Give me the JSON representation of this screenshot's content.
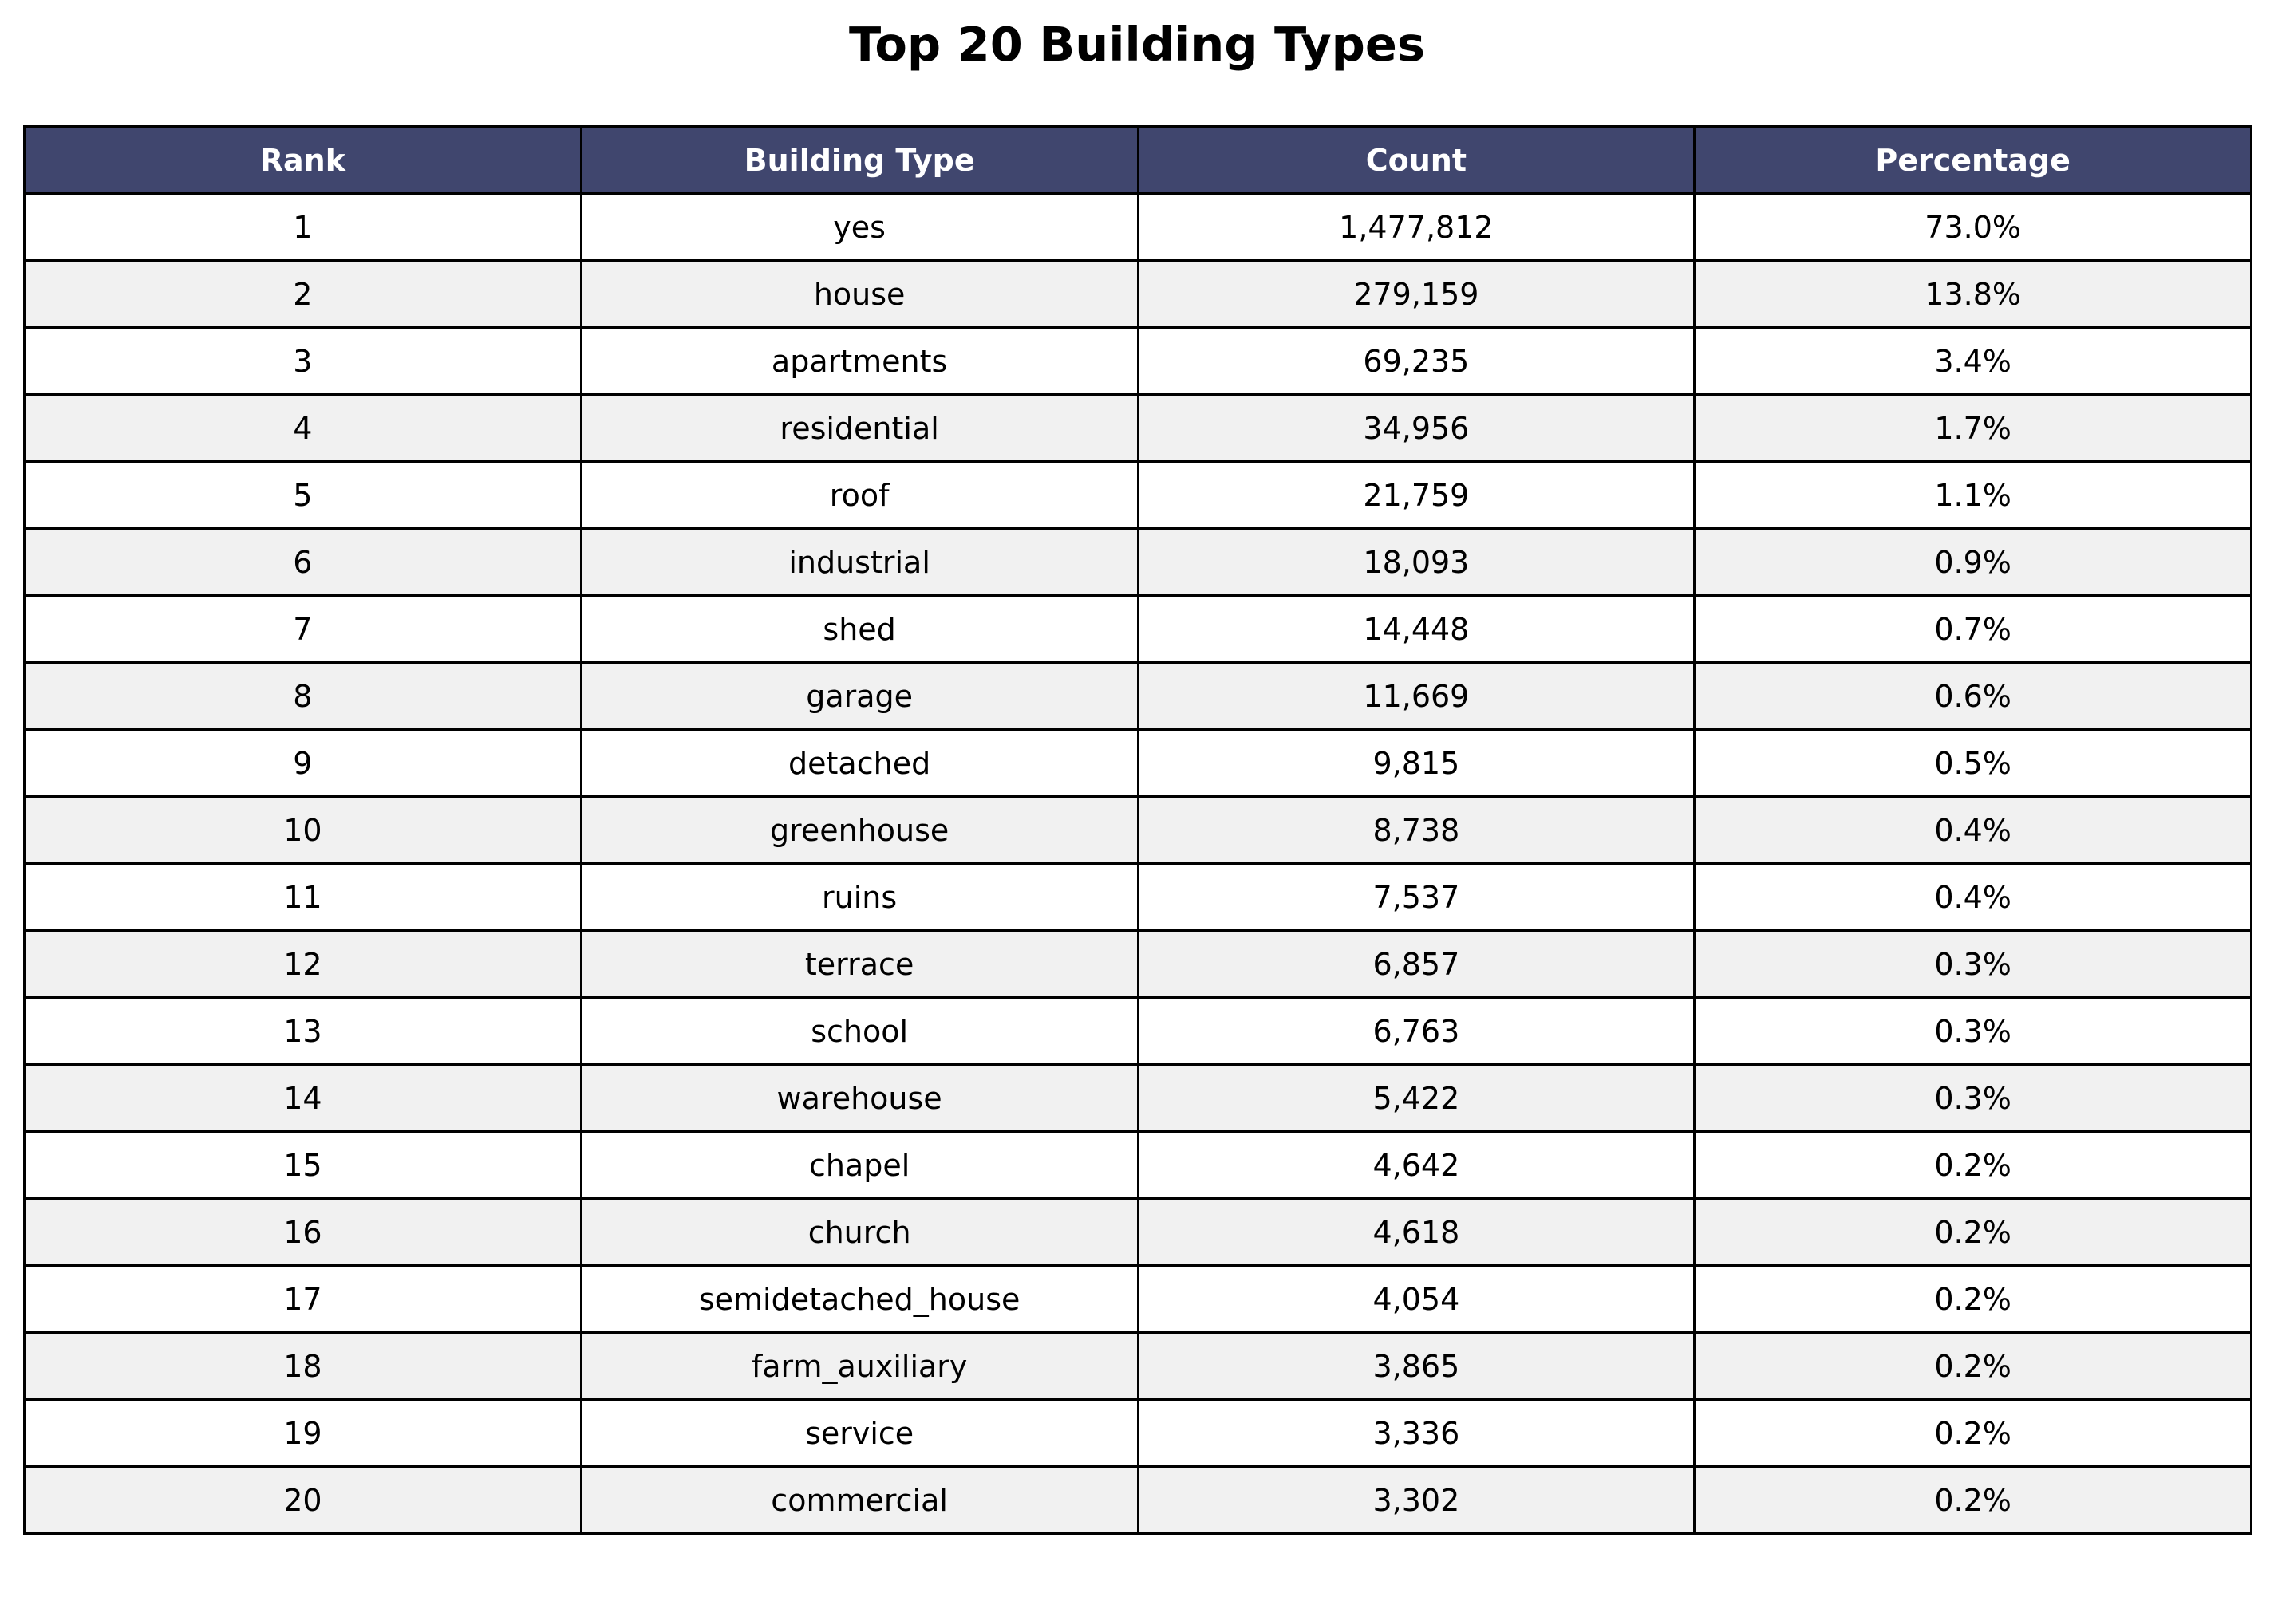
{
  "chart_data": {
    "type": "table",
    "title": "Top 20 Building Types",
    "header_color": "#40466e",
    "stripe_color": "#f1f1f1",
    "columns": [
      "Rank",
      "Building Type",
      "Count",
      "Percentage"
    ],
    "rows": [
      [
        "1",
        "yes",
        "1,477,812",
        "73.0%"
      ],
      [
        "2",
        "house",
        "279,159",
        "13.8%"
      ],
      [
        "3",
        "apartments",
        "69,235",
        "3.4%"
      ],
      [
        "4",
        "residential",
        "34,956",
        "1.7%"
      ],
      [
        "5",
        "roof",
        "21,759",
        "1.1%"
      ],
      [
        "6",
        "industrial",
        "18,093",
        "0.9%"
      ],
      [
        "7",
        "shed",
        "14,448",
        "0.7%"
      ],
      [
        "8",
        "garage",
        "11,669",
        "0.6%"
      ],
      [
        "9",
        "detached",
        "9,815",
        "0.5%"
      ],
      [
        "10",
        "greenhouse",
        "8,738",
        "0.4%"
      ],
      [
        "11",
        "ruins",
        "7,537",
        "0.4%"
      ],
      [
        "12",
        "terrace",
        "6,857",
        "0.3%"
      ],
      [
        "13",
        "school",
        "6,763",
        "0.3%"
      ],
      [
        "14",
        "warehouse",
        "5,422",
        "0.3%"
      ],
      [
        "15",
        "chapel",
        "4,642",
        "0.2%"
      ],
      [
        "16",
        "church",
        "4,618",
        "0.2%"
      ],
      [
        "17",
        "semidetached_house",
        "4,054",
        "0.2%"
      ],
      [
        "18",
        "farm_auxiliary",
        "3,865",
        "0.2%"
      ],
      [
        "19",
        "service",
        "3,336",
        "0.2%"
      ],
      [
        "20",
        "commercial",
        "3,302",
        "0.2%"
      ]
    ]
  }
}
